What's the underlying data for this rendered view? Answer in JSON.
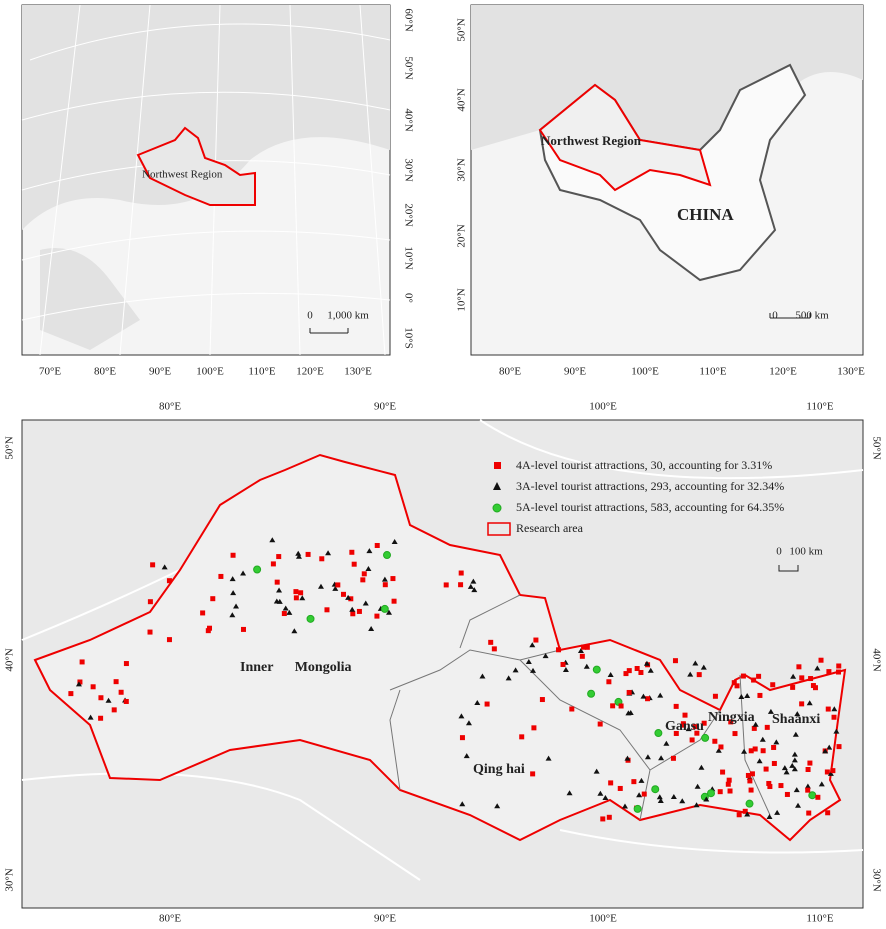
{
  "panels": [
    {
      "lat_labels": [
        "60°N",
        "50°N",
        "40°N",
        "30°N",
        "20°N",
        "10°N",
        "0°",
        "10°S"
      ],
      "lon_labels": [
        "70°E",
        "80°E",
        "90°E",
        "100°E",
        "110°E",
        "120°E",
        "130°E"
      ],
      "region_label": "Northwest Region",
      "scale": {
        "zero": "0",
        "length": "1,000 km"
      }
    },
    {
      "lat_labels": [
        "50°N",
        "40°N",
        "30°N",
        "20°N",
        "10°N"
      ],
      "lon_labels": [
        "80°E",
        "90°E",
        "100°E",
        "110°E",
        "120°E",
        "130°E"
      ],
      "region_label": "Northwest Region",
      "country_label": "CHINA",
      "scale": {
        "zero": "0",
        "length": "500 km"
      }
    },
    {
      "lat_labels": [
        "50°N",
        "40°N",
        "30°N"
      ],
      "lon_labels": [
        "80°E",
        "90°E",
        "100°E",
        "110°E"
      ],
      "legend": [
        "4A-level tourist attractions, 30, accounting for 3.31%",
        "3A-level tourist attractions, 293, accounting for 32.34%",
        "5A-level tourist attractions, 583, accounting for 64.35%",
        "Research area"
      ],
      "scale": {
        "zero": "0",
        "length": "100 km"
      },
      "region_labels": [
        "Inner Mongolia",
        "Qing hai",
        "Gansu",
        "Ningxia",
        "Shaanxi"
      ]
    }
  ]
}
